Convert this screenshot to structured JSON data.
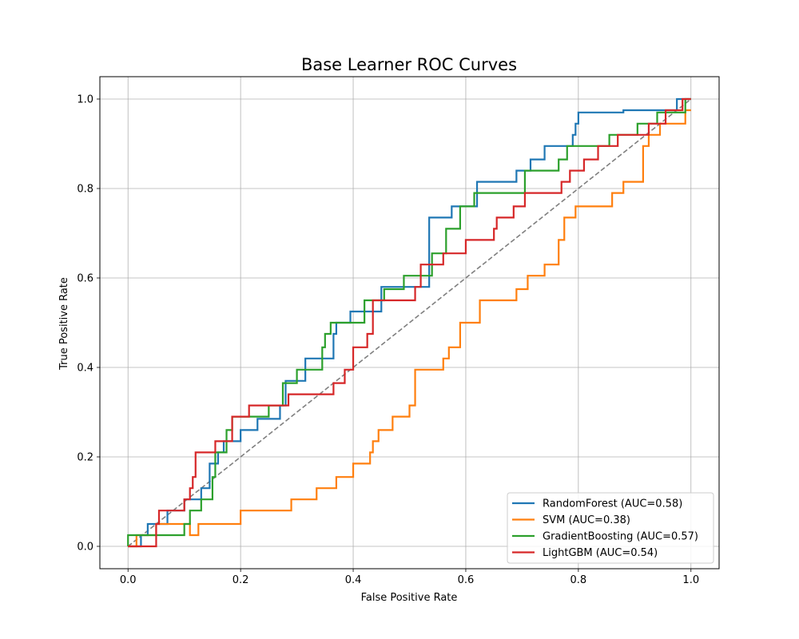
{
  "chart_data": {
    "type": "line",
    "title": "Base Learner ROC Curves",
    "xlabel": "False Positive Rate",
    "ylabel": "True Positive Rate",
    "xlim": [
      -0.05,
      1.05
    ],
    "ylim": [
      -0.05,
      1.05
    ],
    "xticks": [
      "0.0",
      "0.2",
      "0.4",
      "0.6",
      "0.8",
      "1.0"
    ],
    "yticks": [
      "0.0",
      "0.2",
      "0.4",
      "0.6",
      "0.8",
      "1.0"
    ],
    "grid": true,
    "legend_position": "lower-right",
    "diagonal": {
      "x": [
        0,
        1
      ],
      "y": [
        0,
        1
      ],
      "color": "#7f7f7f",
      "style": "dashed"
    },
    "series": [
      {
        "name": "RandomForest (AUC=0.58)",
        "color": "#1f77b4",
        "x": [
          0.0,
          0.023,
          0.023,
          0.035,
          0.035,
          0.07,
          0.07,
          0.1,
          0.1,
          0.13,
          0.13,
          0.145,
          0.145,
          0.16,
          0.16,
          0.17,
          0.17,
          0.2,
          0.2,
          0.23,
          0.23,
          0.27,
          0.27,
          0.28,
          0.28,
          0.315,
          0.315,
          0.365,
          0.365,
          0.37,
          0.37,
          0.395,
          0.395,
          0.45,
          0.45,
          0.535,
          0.535,
          0.575,
          0.575,
          0.62,
          0.62,
          0.69,
          0.69,
          0.715,
          0.715,
          0.74,
          0.74,
          0.79,
          0.79,
          0.795,
          0.795,
          0.8,
          0.8,
          0.88,
          0.88,
          0.975,
          0.975,
          0.985,
          0.985,
          1.0
        ],
        "y": [
          0.0,
          0.0,
          0.025,
          0.025,
          0.05,
          0.05,
          0.08,
          0.08,
          0.105,
          0.105,
          0.13,
          0.13,
          0.185,
          0.185,
          0.21,
          0.21,
          0.235,
          0.235,
          0.26,
          0.26,
          0.285,
          0.285,
          0.315,
          0.315,
          0.37,
          0.37,
          0.42,
          0.42,
          0.475,
          0.475,
          0.5,
          0.5,
          0.525,
          0.525,
          0.58,
          0.58,
          0.735,
          0.735,
          0.76,
          0.76,
          0.815,
          0.815,
          0.84,
          0.84,
          0.865,
          0.865,
          0.895,
          0.895,
          0.92,
          0.92,
          0.945,
          0.945,
          0.97,
          0.97,
          0.975,
          0.975,
          1.0,
          1.0,
          1.0,
          1.0
        ]
      },
      {
        "name": "SVM (AUC=0.38)",
        "color": "#ff7f0e",
        "x": [
          0.0,
          0.015,
          0.015,
          0.05,
          0.05,
          0.11,
          0.11,
          0.125,
          0.125,
          0.2,
          0.2,
          0.29,
          0.29,
          0.335,
          0.335,
          0.37,
          0.37,
          0.4,
          0.4,
          0.43,
          0.43,
          0.435,
          0.435,
          0.445,
          0.445,
          0.47,
          0.47,
          0.5,
          0.5,
          0.51,
          0.51,
          0.56,
          0.56,
          0.57,
          0.57,
          0.59,
          0.59,
          0.625,
          0.625,
          0.69,
          0.69,
          0.71,
          0.71,
          0.74,
          0.74,
          0.765,
          0.765,
          0.775,
          0.775,
          0.795,
          0.795,
          0.86,
          0.86,
          0.88,
          0.88,
          0.915,
          0.915,
          0.925,
          0.925,
          0.945,
          0.945,
          0.99,
          0.99,
          1.0
        ],
        "y": [
          0.0,
          0.0,
          0.025,
          0.025,
          0.05,
          0.05,
          0.025,
          0.025,
          0.05,
          0.05,
          0.08,
          0.08,
          0.105,
          0.105,
          0.13,
          0.13,
          0.155,
          0.155,
          0.185,
          0.185,
          0.21,
          0.21,
          0.235,
          0.235,
          0.26,
          0.26,
          0.29,
          0.29,
          0.315,
          0.315,
          0.395,
          0.395,
          0.42,
          0.42,
          0.445,
          0.445,
          0.5,
          0.5,
          0.55,
          0.55,
          0.575,
          0.575,
          0.605,
          0.605,
          0.63,
          0.63,
          0.685,
          0.685,
          0.735,
          0.735,
          0.76,
          0.76,
          0.79,
          0.79,
          0.815,
          0.815,
          0.895,
          0.895,
          0.92,
          0.92,
          0.945,
          0.945,
          0.975,
          0.975
        ]
      },
      {
        "name": "GradientBoosting (AUC=0.57)",
        "color": "#2ca02c",
        "x": [
          0.0,
          0.0,
          0.03,
          0.03,
          0.035,
          0.035,
          0.1,
          0.1,
          0.11,
          0.11,
          0.13,
          0.13,
          0.15,
          0.15,
          0.155,
          0.155,
          0.175,
          0.175,
          0.185,
          0.185,
          0.25,
          0.25,
          0.275,
          0.275,
          0.3,
          0.3,
          0.345,
          0.345,
          0.35,
          0.35,
          0.36,
          0.36,
          0.42,
          0.42,
          0.455,
          0.455,
          0.49,
          0.49,
          0.54,
          0.54,
          0.565,
          0.565,
          0.59,
          0.59,
          0.615,
          0.615,
          0.705,
          0.705,
          0.765,
          0.765,
          0.78,
          0.78,
          0.855,
          0.855,
          0.905,
          0.905,
          0.94,
          0.94,
          0.99,
          0.99,
          1.0
        ],
        "y": [
          0.0,
          0.025,
          0.025,
          0.025,
          0.025,
          0.025,
          0.025,
          0.05,
          0.05,
          0.08,
          0.08,
          0.105,
          0.105,
          0.155,
          0.155,
          0.21,
          0.21,
          0.26,
          0.26,
          0.29,
          0.29,
          0.315,
          0.315,
          0.365,
          0.365,
          0.395,
          0.395,
          0.445,
          0.445,
          0.475,
          0.475,
          0.5,
          0.5,
          0.55,
          0.55,
          0.575,
          0.575,
          0.605,
          0.605,
          0.655,
          0.655,
          0.71,
          0.71,
          0.76,
          0.76,
          0.79,
          0.79,
          0.84,
          0.84,
          0.865,
          0.865,
          0.895,
          0.895,
          0.92,
          0.92,
          0.945,
          0.945,
          0.97,
          0.97,
          1.0,
          1.0
        ]
      },
      {
        "name": "LightGBM (AUC=0.54)",
        "color": "#d62728",
        "x": [
          0.0,
          0.05,
          0.05,
          0.055,
          0.055,
          0.1,
          0.1,
          0.11,
          0.11,
          0.115,
          0.115,
          0.12,
          0.12,
          0.155,
          0.155,
          0.185,
          0.185,
          0.215,
          0.215,
          0.285,
          0.285,
          0.365,
          0.365,
          0.385,
          0.385,
          0.4,
          0.4,
          0.425,
          0.425,
          0.435,
          0.435,
          0.51,
          0.51,
          0.52,
          0.52,
          0.56,
          0.56,
          0.6,
          0.6,
          0.65,
          0.65,
          0.655,
          0.655,
          0.685,
          0.685,
          0.705,
          0.705,
          0.77,
          0.77,
          0.785,
          0.785,
          0.81,
          0.81,
          0.835,
          0.835,
          0.87,
          0.87,
          0.925,
          0.925,
          0.955,
          0.955,
          0.985,
          0.985,
          1.0
        ],
        "y": [
          0.0,
          0.0,
          0.05,
          0.05,
          0.08,
          0.08,
          0.105,
          0.105,
          0.13,
          0.13,
          0.155,
          0.155,
          0.21,
          0.21,
          0.235,
          0.235,
          0.29,
          0.29,
          0.315,
          0.315,
          0.34,
          0.34,
          0.365,
          0.365,
          0.395,
          0.395,
          0.445,
          0.445,
          0.475,
          0.475,
          0.55,
          0.55,
          0.58,
          0.58,
          0.63,
          0.63,
          0.655,
          0.655,
          0.685,
          0.685,
          0.71,
          0.71,
          0.735,
          0.735,
          0.76,
          0.76,
          0.79,
          0.79,
          0.815,
          0.815,
          0.84,
          0.84,
          0.865,
          0.865,
          0.895,
          0.895,
          0.92,
          0.92,
          0.945,
          0.945,
          0.975,
          0.975,
          1.0,
          1.0
        ]
      }
    ]
  }
}
